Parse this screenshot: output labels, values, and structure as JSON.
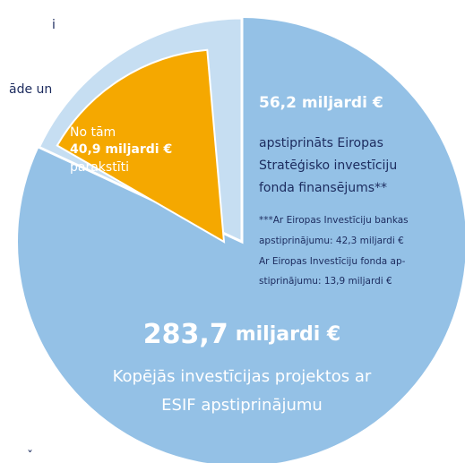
{
  "fragments": [
    "i",
    "āde un",
    "ˇ"
  ],
  "total": {
    "amount": "283,7",
    "unit": "miljardi €",
    "lines": [
      "Kopējās investīcijas projektos ar",
      "ESIF apstiprinājumu"
    ]
  },
  "efsi": {
    "amount": "56,2 miljardi €",
    "lines": [
      "apstiprināts Eiropas",
      "Stratēģisko investīciju",
      "fonda finansējums**"
    ],
    "note": [
      "***Ar Eiropas Investīciju bankas",
      "apstiprinājumu: 42,3 miljardi €",
      "Ar Eiropas Investīciju fonda ap-",
      "stiprinājumu: 13,9 miljardi €"
    ]
  },
  "signed": {
    "prefix": "No tām",
    "amount": "40,9 miljardi €",
    "suffix": "parakstīti"
  }
}
